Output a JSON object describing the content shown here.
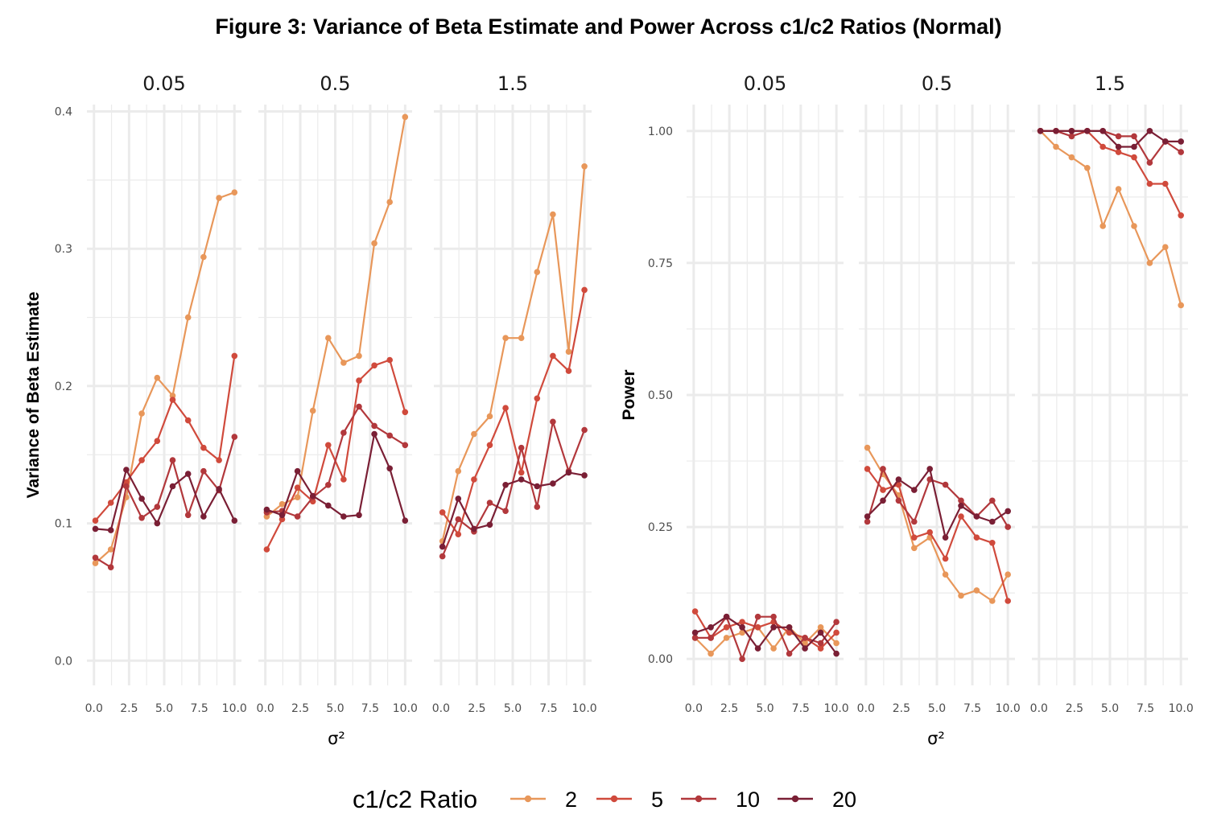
{
  "title": "Figure 3: Variance of Beta Estimate and Power Across c1/c2 Ratios (Normal)",
  "colors": {
    "2": "#E8975A",
    "5": "#D04A3C",
    "10": "#B2383C",
    "20": "#7A1F35",
    "grid": "#EBEBEB"
  },
  "legend": {
    "title": "c1/c2 Ratio",
    "position": "bottom",
    "items": [
      "2",
      "5",
      "10",
      "20"
    ]
  },
  "chart_data": [
    {
      "type": "line",
      "ylabel": "Variance of Beta Estimate",
      "xlabel": "σ²",
      "ylim": [
        -0.018,
        0.405
      ],
      "yticks": [
        0.0,
        0.1,
        0.2,
        0.3,
        0.4
      ],
      "ytick_labels": [
        "0.0",
        "0.1",
        "0.2",
        "0.3",
        "0.4"
      ],
      "xlim": [
        -0.5,
        10.5
      ],
      "xticks": [
        0,
        2.5,
        5,
        7.5,
        10
      ],
      "xtick_labels": [
        "0.0",
        "2.5",
        "5.0",
        "7.5",
        "10.0"
      ],
      "x": [
        0.1,
        1.2,
        2.3,
        3.4,
        4.5,
        5.6,
        6.7,
        7.8,
        8.9,
        10.0
      ],
      "grid": true,
      "facets": [
        {
          "label": "0.05",
          "series": [
            {
              "name": "2",
              "values": [
                0.071,
                0.081,
                0.119,
                0.18,
                0.206,
                0.193,
                0.25,
                0.294,
                0.337,
                0.341
              ]
            },
            {
              "name": "5",
              "values": [
                0.102,
                0.115,
                0.13,
                0.146,
                0.16,
                0.19,
                0.175,
                0.155,
                0.146,
                0.222
              ]
            },
            {
              "name": "10",
              "values": [
                0.075,
                0.068,
                0.127,
                0.104,
                0.112,
                0.146,
                0.106,
                0.138,
                0.124,
                0.163
              ]
            },
            {
              "name": "20",
              "values": [
                0.096,
                0.095,
                0.139,
                0.118,
                0.1,
                0.127,
                0.136,
                0.105,
                0.125,
                0.102
              ]
            }
          ]
        },
        {
          "label": "0.5",
          "series": [
            {
              "name": "2",
              "values": [
                0.105,
                0.114,
                0.119,
                0.182,
                0.235,
                0.217,
                0.222,
                0.304,
                0.334,
                0.396
              ]
            },
            {
              "name": "5",
              "values": [
                0.081,
                0.103,
                0.126,
                0.116,
                0.157,
                0.132,
                0.204,
                0.215,
                0.219,
                0.181
              ]
            },
            {
              "name": "10",
              "values": [
                0.108,
                0.109,
                0.105,
                0.119,
                0.128,
                0.166,
                0.185,
                0.171,
                0.164,
                0.157
              ]
            },
            {
              "name": "20",
              "values": [
                0.11,
                0.106,
                0.138,
                0.12,
                0.113,
                0.105,
                0.106,
                0.165,
                0.14,
                0.102
              ]
            }
          ]
        },
        {
          "label": "1.5",
          "series": [
            {
              "name": "2",
              "values": [
                0.087,
                0.138,
                0.165,
                0.178,
                0.235,
                0.235,
                0.283,
                0.325,
                0.225,
                0.36
              ]
            },
            {
              "name": "5",
              "values": [
                0.108,
                0.092,
                0.132,
                0.157,
                0.184,
                0.137,
                0.191,
                0.222,
                0.211,
                0.27
              ]
            },
            {
              "name": "10",
              "values": [
                0.076,
                0.103,
                0.094,
                0.115,
                0.109,
                0.155,
                0.112,
                0.174,
                0.138,
                0.168
              ]
            },
            {
              "name": "20",
              "values": [
                0.083,
                0.118,
                0.096,
                0.099,
                0.128,
                0.132,
                0.127,
                0.129,
                0.137,
                0.135
              ]
            }
          ]
        }
      ]
    },
    {
      "type": "line",
      "ylabel": "Power",
      "xlabel": "σ²",
      "ylim": [
        -0.05,
        1.05
      ],
      "yticks": [
        0.0,
        0.25,
        0.5,
        0.75,
        1.0
      ],
      "ytick_labels": [
        "0.00",
        "0.25",
        "0.50",
        "0.75",
        "1.00"
      ],
      "xlim": [
        -0.5,
        10.5
      ],
      "xticks": [
        0,
        2.5,
        5,
        7.5,
        10
      ],
      "xtick_labels": [
        "0.0",
        "2.5",
        "5.0",
        "7.5",
        "10.0"
      ],
      "x": [
        0.1,
        1.2,
        2.3,
        3.4,
        4.5,
        5.6,
        6.7,
        7.8,
        8.9,
        10.0
      ],
      "grid": true,
      "facets": [
        {
          "label": "0.05",
          "series": [
            {
              "name": "2",
              "values": [
                0.04,
                0.01,
                0.04,
                0.05,
                0.06,
                0.02,
                0.06,
                0.03,
                0.06,
                0.03
              ]
            },
            {
              "name": "5",
              "values": [
                0.09,
                0.04,
                0.06,
                0.07,
                0.06,
                0.07,
                0.05,
                0.04,
                0.02,
                0.05
              ]
            },
            {
              "name": "10",
              "values": [
                0.04,
                0.04,
                0.08,
                0.0,
                0.08,
                0.08,
                0.01,
                0.04,
                0.03,
                0.07
              ]
            },
            {
              "name": "20",
              "values": [
                0.05,
                0.06,
                0.08,
                0.06,
                0.02,
                0.06,
                0.06,
                0.02,
                0.05,
                0.01
              ]
            }
          ]
        },
        {
          "label": "0.5",
          "series": [
            {
              "name": "2",
              "values": [
                0.4,
                0.35,
                0.31,
                0.21,
                0.23,
                0.16,
                0.12,
                0.13,
                0.11,
                0.16
              ]
            },
            {
              "name": "5",
              "values": [
                0.36,
                0.32,
                0.33,
                0.23,
                0.24,
                0.19,
                0.27,
                0.23,
                0.22,
                0.11
              ]
            },
            {
              "name": "10",
              "values": [
                0.26,
                0.36,
                0.3,
                0.26,
                0.34,
                0.33,
                0.3,
                0.27,
                0.3,
                0.25
              ]
            },
            {
              "name": "20",
              "values": [
                0.27,
                0.3,
                0.34,
                0.32,
                0.36,
                0.23,
                0.29,
                0.27,
                0.26,
                0.28
              ]
            }
          ]
        },
        {
          "label": "1.5",
          "series": [
            {
              "name": "2",
              "values": [
                1.0,
                0.97,
                0.95,
                0.93,
                0.82,
                0.89,
                0.82,
                0.75,
                0.78,
                0.67
              ]
            },
            {
              "name": "5",
              "values": [
                1.0,
                1.0,
                1.0,
                1.0,
                0.97,
                0.96,
                0.95,
                0.9,
                0.9,
                0.84
              ]
            },
            {
              "name": "10",
              "values": [
                1.0,
                1.0,
                0.99,
                1.0,
                1.0,
                0.99,
                0.99,
                0.94,
                0.98,
                0.96
              ]
            },
            {
              "name": "20",
              "values": [
                1.0,
                1.0,
                1.0,
                1.0,
                1.0,
                0.97,
                0.97,
                1.0,
                0.98,
                0.98
              ]
            }
          ]
        }
      ]
    }
  ]
}
